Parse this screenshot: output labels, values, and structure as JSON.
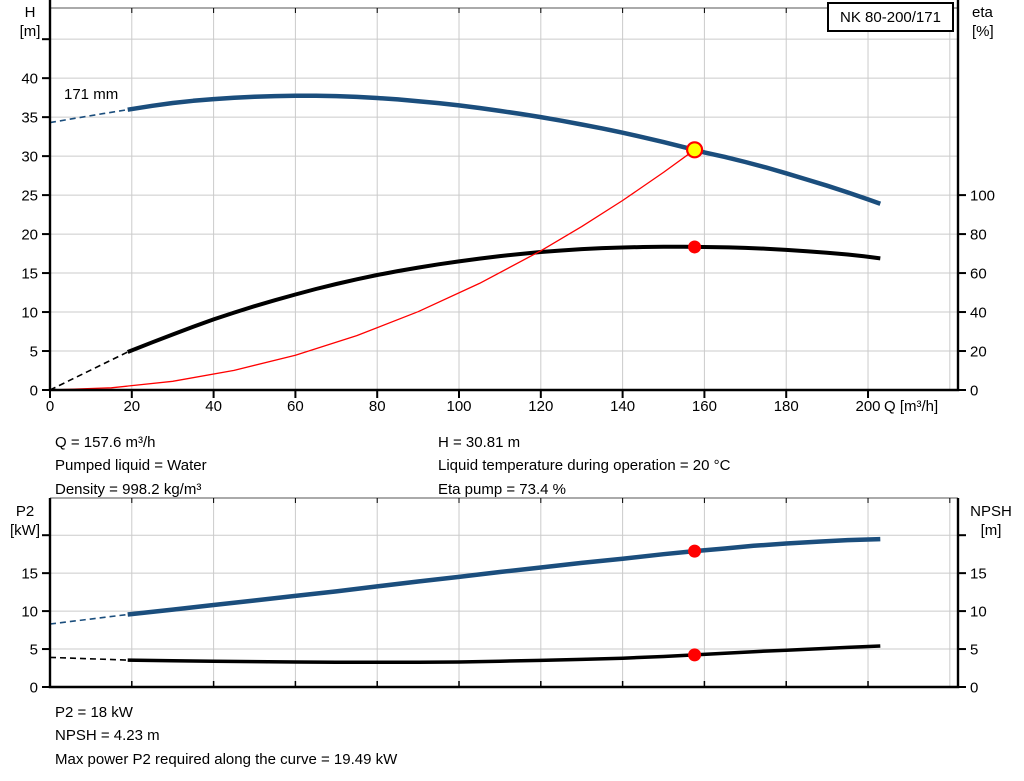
{
  "header": {
    "pump_name": "NK 80-200/171"
  },
  "impeller_label": "171 mm",
  "colors": {
    "curve_blue": "#1b4e7d",
    "curve_black": "#000000",
    "curve_red": "#ff0000",
    "duty_yellow": "#ffff00",
    "grid_line": "#cbcbcb",
    "axis": "#000000"
  },
  "operating_point_top": {
    "left_lines": [
      "Q = 157.6 m³/h",
      "Pumped liquid = Water",
      "Density = 998.2 kg/m³"
    ],
    "right_lines": [
      "H = 30.81 m",
      "Liquid temperature during operation = 20 °C",
      "Eta pump = 73.4 %"
    ]
  },
  "operating_point_bottom": {
    "lines": [
      "P2 = 18 kW",
      "NPSH = 4.23 m",
      "Max power P2 required along the curve = 19.49 kW"
    ]
  },
  "chart_data": [
    {
      "type": "line",
      "name": "head-efficiency-chart",
      "title": "NK 80-200/171 head / efficiency vs flow",
      "x_axis": {
        "label": "Q [m³/h]",
        "min": 0,
        "max": 222,
        "grid": [
          20,
          40,
          60,
          80,
          100,
          120,
          140,
          160,
          180,
          200,
          220
        ],
        "ticks": [
          {
            "v": 0,
            "label": "0"
          },
          {
            "v": 20,
            "label": "20"
          },
          {
            "v": 40,
            "label": "40"
          },
          {
            "v": 60,
            "label": "60"
          },
          {
            "v": 80,
            "label": "80"
          },
          {
            "v": 100,
            "label": "100"
          },
          {
            "v": 120,
            "label": "120"
          },
          {
            "v": 140,
            "label": "140"
          },
          {
            "v": 160,
            "label": "160"
          },
          {
            "v": 180,
            "label": "180"
          },
          {
            "v": 200,
            "label": "200"
          }
        ]
      },
      "y_left": {
        "label_lines": [
          "H",
          "[m]"
        ],
        "min": 0,
        "max": 49,
        "grid": [
          5,
          10,
          15,
          20,
          25,
          30,
          35,
          40,
          45
        ],
        "ticks": [
          {
            "v": 0,
            "label": "0"
          },
          {
            "v": 5,
            "label": "5"
          },
          {
            "v": 10,
            "label": "10"
          },
          {
            "v": 15,
            "label": "15"
          },
          {
            "v": 20,
            "label": "20"
          },
          {
            "v": 25,
            "label": "25"
          },
          {
            "v": 30,
            "label": "30"
          },
          {
            "v": 35,
            "label": "35"
          },
          {
            "v": 40,
            "label": "40"
          },
          {
            "v": 45,
            "label": ""
          }
        ]
      },
      "y_right": {
        "label_lines": [
          "eta",
          "[%]"
        ],
        "min": 0,
        "max": 196,
        "ticks": [
          {
            "v": 0,
            "label": "0"
          },
          {
            "v": 20,
            "label": "20"
          },
          {
            "v": 40,
            "label": "40"
          },
          {
            "v": 60,
            "label": "60"
          },
          {
            "v": 80,
            "label": "80"
          },
          {
            "v": 100,
            "label": "100"
          }
        ]
      },
      "series": [
        {
          "name": "efficiency-curve",
          "axis": "right",
          "color": "#000000",
          "width": 4,
          "dash_lead": [
            [
              0,
              0
            ],
            [
              19,
              19.5
            ]
          ],
          "points": [
            [
              19,
              19.5
            ],
            [
              25,
              24.5
            ],
            [
              30,
              28.5
            ],
            [
              35,
              32.5
            ],
            [
              40,
              36.2
            ],
            [
              45,
              39.7
            ],
            [
              50,
              43.0
            ],
            [
              55,
              46.1
            ],
            [
              60,
              49.0
            ],
            [
              65,
              51.8
            ],
            [
              70,
              54.4
            ],
            [
              75,
              56.8
            ],
            [
              80,
              59.0
            ],
            [
              85,
              61.0
            ],
            [
              90,
              62.8
            ],
            [
              95,
              64.5
            ],
            [
              100,
              66.0
            ],
            [
              105,
              67.4
            ],
            [
              110,
              68.7
            ],
            [
              115,
              69.8
            ],
            [
              120,
              70.8
            ],
            [
              125,
              71.6
            ],
            [
              130,
              72.3
            ],
            [
              135,
              72.8
            ],
            [
              140,
              73.1
            ],
            [
              145,
              73.35
            ],
            [
              150,
              73.45
            ],
            [
              155,
              73.45
            ],
            [
              157.6,
              73.4
            ],
            [
              162,
              73.3
            ],
            [
              166,
              73.15
            ],
            [
              170,
              72.9
            ],
            [
              175,
              72.5
            ],
            [
              180,
              71.9
            ],
            [
              185,
              71.2
            ],
            [
              190,
              70.4
            ],
            [
              195,
              69.5
            ],
            [
              199,
              68.6
            ],
            [
              203,
              67.5
            ]
          ]
        },
        {
          "name": "system-curve",
          "axis": "left",
          "color": "#ff0000",
          "width": 1.3,
          "points": [
            [
              0,
              0
            ],
            [
              15,
              0.28
            ],
            [
              30,
              1.12
            ],
            [
              45,
              2.51
            ],
            [
              60,
              4.47
            ],
            [
              75,
              6.98
            ],
            [
              90,
              10.05
            ],
            [
              105,
              13.68
            ],
            [
              120,
              17.86
            ],
            [
              130,
              20.96
            ],
            [
              140,
              24.31
            ],
            [
              150,
              27.91
            ],
            [
              157.6,
              30.81
            ]
          ]
        },
        {
          "name": "pump-curve-171mm",
          "axis": "left",
          "color": "#1b4e7d",
          "width": 4.5,
          "dash_lead": [
            [
              0,
              34.3
            ],
            [
              7,
              34.93
            ],
            [
              13,
              35.45
            ],
            [
              19,
              35.95
            ]
          ],
          "points": [
            [
              19,
              35.95
            ],
            [
              25,
              36.45
            ],
            [
              30,
              36.82
            ],
            [
              35,
              37.1
            ],
            [
              40,
              37.32
            ],
            [
              45,
              37.5
            ],
            [
              50,
              37.62
            ],
            [
              55,
              37.7
            ],
            [
              60,
              37.75
            ],
            [
              65,
              37.75
            ],
            [
              70,
              37.7
            ],
            [
              75,
              37.6
            ],
            [
              80,
              37.45
            ],
            [
              85,
              37.27
            ],
            [
              90,
              37.05
            ],
            [
              95,
              36.8
            ],
            [
              100,
              36.5
            ],
            [
              105,
              36.17
            ],
            [
              110,
              35.8
            ],
            [
              115,
              35.42
            ],
            [
              120,
              35.0
            ],
            [
              125,
              34.55
            ],
            [
              130,
              34.05
            ],
            [
              135,
              33.55
            ],
            [
              140,
              33.0
            ],
            [
              145,
              32.42
            ],
            [
              150,
              31.8
            ],
            [
              155,
              31.15
            ],
            [
              157.6,
              30.81
            ],
            [
              160,
              30.48
            ],
            [
              165,
              29.9
            ],
            [
              170,
              29.25
            ],
            [
              175,
              28.55
            ],
            [
              180,
              27.8
            ],
            [
              185,
              27.0
            ],
            [
              190,
              26.2
            ],
            [
              195,
              25.35
            ],
            [
              200,
              24.45
            ],
            [
              203,
              23.9
            ]
          ]
        }
      ],
      "markers": [
        {
          "name": "duty-point",
          "q": 157.6,
          "v": 30.81,
          "axis": "left",
          "r": 7.5,
          "fill": "#ffff00",
          "stroke": "#ff0000",
          "stroke_width": 2.2,
          "interactable": true
        },
        {
          "name": "efficiency-point",
          "q": 157.6,
          "v": 73.4,
          "axis": "right",
          "r": 6.5,
          "fill": "#ff0000",
          "stroke": "none",
          "stroke_width": 0,
          "interactable": false
        }
      ]
    },
    {
      "type": "line",
      "name": "power-npsh-chart",
      "title": "NK 80-200/171 power / NPSH vs flow",
      "x_axis": {
        "label": "",
        "min": 0,
        "max": 222,
        "grid": [
          20,
          40,
          60,
          80,
          100,
          120,
          140,
          160,
          180,
          200,
          220
        ],
        "ticks": [
          {
            "v": 20,
            "label": ""
          },
          {
            "v": 40,
            "label": ""
          },
          {
            "v": 60,
            "label": ""
          },
          {
            "v": 80,
            "label": ""
          },
          {
            "v": 100,
            "label": ""
          },
          {
            "v": 120,
            "label": ""
          },
          {
            "v": 140,
            "label": ""
          },
          {
            "v": 160,
            "label": ""
          },
          {
            "v": 180,
            "label": ""
          },
          {
            "v": 200,
            "label": ""
          }
        ]
      },
      "y_left": {
        "label_lines": [
          "P2",
          "[kW]"
        ],
        "min": 0,
        "max": 24.9,
        "grid": [
          5,
          10,
          15,
          20
        ],
        "ticks": [
          {
            "v": 0,
            "label": "0"
          },
          {
            "v": 5,
            "label": "5"
          },
          {
            "v": 10,
            "label": "10"
          },
          {
            "v": 15,
            "label": "15"
          },
          {
            "v": 20,
            "label": ""
          }
        ]
      },
      "y_right": {
        "label_lines": [
          "NPSH",
          "[m]"
        ],
        "min": 0,
        "max": 24.9,
        "ticks": [
          {
            "v": 0,
            "label": "0"
          },
          {
            "v": 5,
            "label": "5"
          },
          {
            "v": 10,
            "label": "10"
          },
          {
            "v": 15,
            "label": "15"
          },
          {
            "v": 20,
            "label": ""
          }
        ]
      },
      "series": [
        {
          "name": "p2-curve",
          "axis": "left",
          "color": "#1b4e7d",
          "width": 4.5,
          "dash_lead": [
            [
              0,
              8.3
            ],
            [
              19,
              9.55
            ]
          ],
          "points": [
            [
              19,
              9.55
            ],
            [
              30,
              10.2
            ],
            [
              40,
              10.8
            ],
            [
              50,
              11.4
            ],
            [
              60,
              12.0
            ],
            [
              70,
              12.6
            ],
            [
              80,
              13.25
            ],
            [
              90,
              13.9
            ],
            [
              100,
              14.5
            ],
            [
              110,
              15.15
            ],
            [
              120,
              15.75
            ],
            [
              130,
              16.35
            ],
            [
              140,
              16.9
            ],
            [
              150,
              17.5
            ],
            [
              157.6,
              17.9
            ],
            [
              165,
              18.25
            ],
            [
              172,
              18.6
            ],
            [
              180,
              18.9
            ],
            [
              188,
              19.15
            ],
            [
              195,
              19.35
            ],
            [
              203,
              19.49
            ]
          ]
        },
        {
          "name": "npsh-curve",
          "axis": "right",
          "color": "#000000",
          "width": 3.5,
          "dash_lead": [
            [
              0,
              3.9
            ],
            [
              19,
              3.55
            ]
          ],
          "points": [
            [
              19,
              3.55
            ],
            [
              30,
              3.45
            ],
            [
              40,
              3.4
            ],
            [
              50,
              3.35
            ],
            [
              60,
              3.3
            ],
            [
              70,
              3.27
            ],
            [
              80,
              3.25
            ],
            [
              90,
              3.27
            ],
            [
              100,
              3.3
            ],
            [
              110,
              3.4
            ],
            [
              120,
              3.5
            ],
            [
              130,
              3.63
            ],
            [
              140,
              3.8
            ],
            [
              150,
              4.02
            ],
            [
              157.6,
              4.23
            ],
            [
              165,
              4.45
            ],
            [
              172,
              4.65
            ],
            [
              180,
              4.85
            ],
            [
              188,
              5.05
            ],
            [
              195,
              5.22
            ],
            [
              203,
              5.4
            ]
          ]
        }
      ],
      "markers": [
        {
          "name": "p2-point",
          "q": 157.6,
          "v": 17.9,
          "axis": "left",
          "r": 6.5,
          "fill": "#ff0000",
          "stroke": "none",
          "stroke_width": 0,
          "interactable": false
        },
        {
          "name": "npsh-point",
          "q": 157.6,
          "v": 4.23,
          "axis": "right",
          "r": 6.5,
          "fill": "#ff0000",
          "stroke": "none",
          "stroke_width": 0,
          "interactable": false
        }
      ]
    }
  ]
}
